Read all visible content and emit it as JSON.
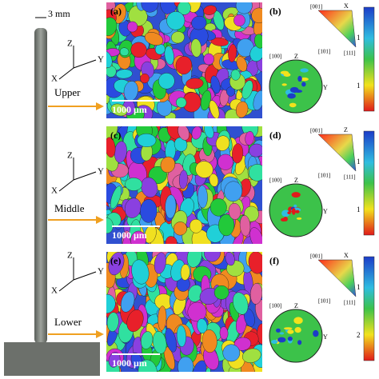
{
  "scale_bar": "3 mm",
  "rows": [
    {
      "position": "Upper",
      "axes": {
        "z": "Z",
        "y": "Y",
        "x": "X"
      },
      "map_panel": "(a)",
      "scale": "1000 μm",
      "pole_panel": "(b)",
      "ipf": {
        "top": "[001]",
        "corner": "X",
        "left": "[101]",
        "right": "[111]"
      },
      "pole": {
        "left": "[100]",
        "top": "Z",
        "right": "Y"
      },
      "colorbar": [
        "1",
        "1"
      ]
    },
    {
      "position": "Middle",
      "axes": {
        "z": "Z",
        "y": "Y",
        "x": "X"
      },
      "map_panel": "(c)",
      "scale": "1000 μm",
      "pole_panel": "(d)",
      "ipf": {
        "top": "[001]",
        "corner": "Z",
        "left": "[101]",
        "right": "[111]"
      },
      "pole": {
        "left": "[100]",
        "top": "Z",
        "right": "Y"
      },
      "colorbar": [
        "1",
        "1"
      ]
    },
    {
      "position": "Lower",
      "axes": {
        "z": "Z",
        "y": "Y",
        "x": "X"
      },
      "map_panel": "(e)",
      "scale": "1000 μm",
      "pole_panel": "(f)",
      "ipf": {
        "top": "[001]",
        "corner": "X",
        "left": "[101]",
        "right": "[111]"
      },
      "pole": {
        "left": "[100]",
        "top": "Z",
        "right": "Y"
      },
      "colorbar": [
        "1",
        "2"
      ]
    }
  ]
}
